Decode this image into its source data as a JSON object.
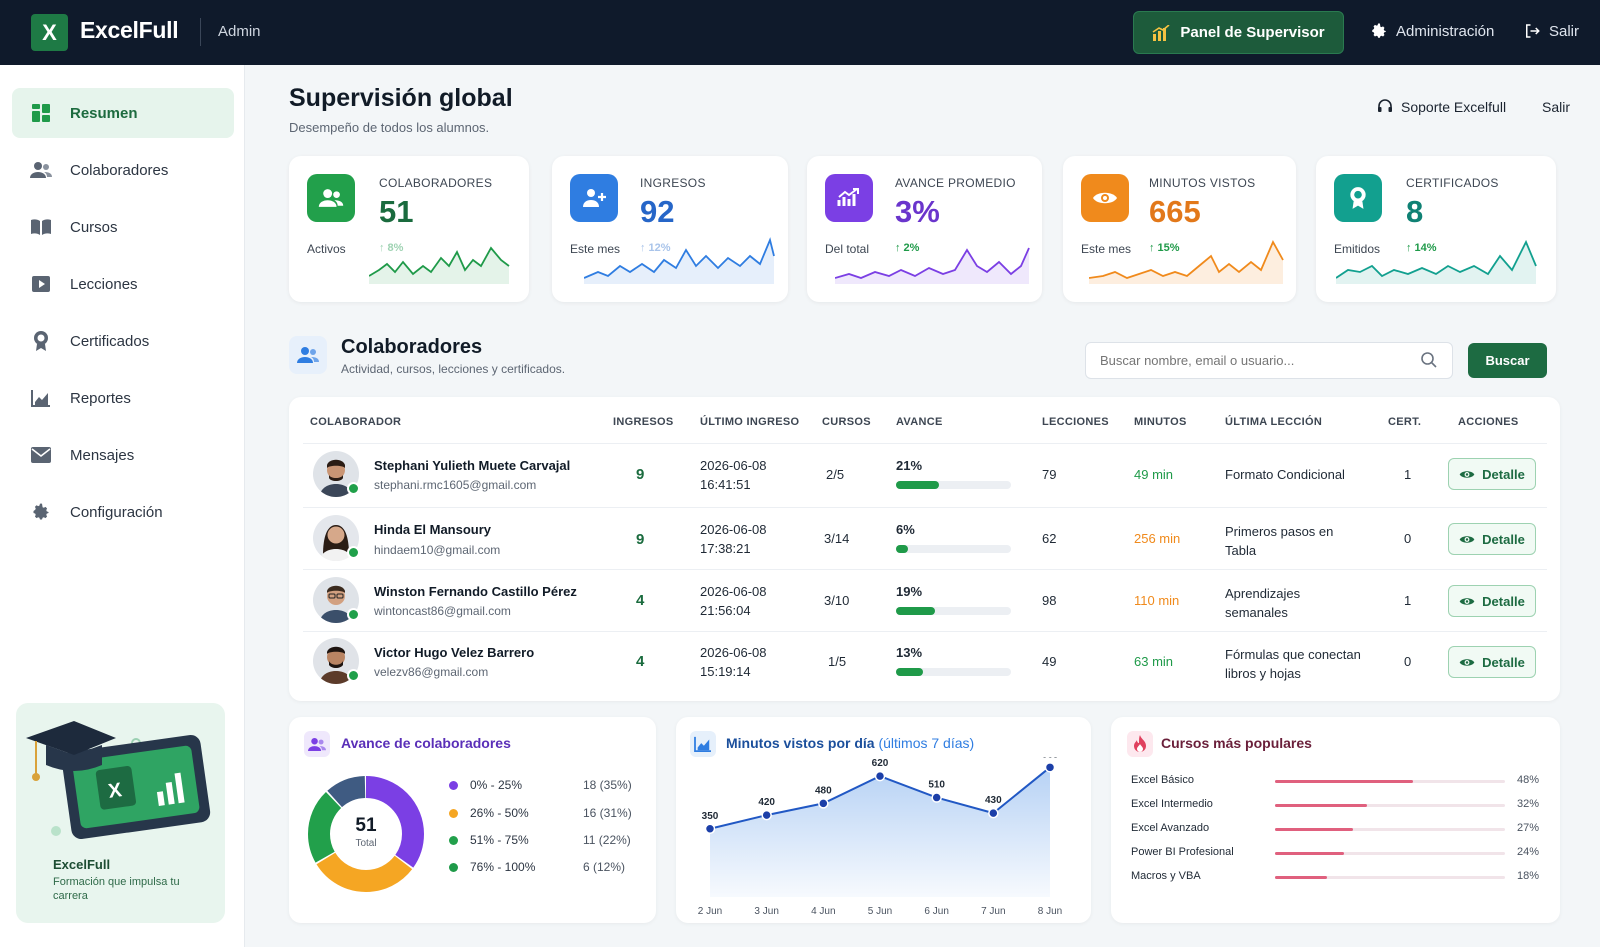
{
  "topbar": {
    "logo_letter": "X",
    "brand": "ExcelFull",
    "section": "Admin",
    "panel_button": "Panel de Supervisor",
    "admin_link": "Administración",
    "logout": "Salir"
  },
  "sidebar": {
    "items": [
      {
        "label": "Resumen",
        "icon": "grid-icon",
        "active": true
      },
      {
        "label": "Colaboradores",
        "icon": "users-icon"
      },
      {
        "label": "Cursos",
        "icon": "book-icon"
      },
      {
        "label": "Lecciones",
        "icon": "play-icon"
      },
      {
        "label": "Certificados",
        "icon": "award-icon"
      },
      {
        "label": "Reportes",
        "icon": "chart-icon"
      },
      {
        "label": "Mensajes",
        "icon": "mail-icon"
      },
      {
        "label": "Configuración",
        "icon": "gear-icon"
      }
    ],
    "promo": {
      "title": "ExcelFull",
      "subtitle": "Formación que impulsa tu carrera",
      "logo_letter": "X"
    }
  },
  "header": {
    "title": "Supervisión global",
    "subtitle": "Desempeño de todos los alumnos.",
    "support": "Soporte Excelfull",
    "logout": "Salir"
  },
  "stats": [
    {
      "label": "COLABORADORES",
      "value": "51",
      "caption": "Activos",
      "delta": "↑ 8%",
      "color": "#1f9a49",
      "icon": "users-icon"
    },
    {
      "label": "INGRESOS",
      "value": "92",
      "caption": "Este mes",
      "delta": "↑ 12%",
      "color": "#2f7de1",
      "icon": "user-plus-icon"
    },
    {
      "label": "AVANCE PROMEDIO",
      "value": "3%",
      "caption": "Del total",
      "delta": "↑ 2%",
      "color": "#7b3fe4",
      "icon": "trend-up-icon"
    },
    {
      "label": "MINUTOS VISTOS",
      "value": "665",
      "caption": "Este mes",
      "delta": "↑ 15%",
      "color": "#f08a1c",
      "icon": "eye-icon"
    },
    {
      "label": "CERTIFICADOS",
      "value": "8",
      "caption": "Emitidos",
      "delta": "↑ 14%",
      "color": "#12a08f",
      "icon": "award-icon"
    }
  ],
  "collaborators": {
    "title": "Colaboradores",
    "subtitle": "Actividad, cursos, lecciones y certificados.",
    "search_placeholder": "Buscar nombre, email o usuario...",
    "search_button": "Buscar",
    "columns": [
      "COLABORADOR",
      "INGRESOS",
      "ÚLTIMO INGRESO",
      "CURSOS",
      "AVANCE",
      "LECCIONES",
      "MINUTOS",
      "ÚLTIMA LECCIÓN",
      "CERT.",
      "ACCIONES"
    ],
    "action_label": "Detalle",
    "rows": [
      {
        "name": "Stephani Yulieth Muete Carvajal",
        "email": "stephani.rmc1605@gmail.com",
        "ingresos": "9",
        "date": "2026-06-08",
        "time": "16:41:51",
        "cursos": "2/5",
        "avance": "21%",
        "avance_value": 21,
        "lecciones": "79",
        "minutos": "49 min",
        "minutos_color": "#1f9a49",
        "ultima": "Formato Condicional",
        "cert": "1"
      },
      {
        "name": "Hinda El Mansoury",
        "email": "hindaem10@gmail.com",
        "ingresos": "9",
        "date": "2026-06-08",
        "time": "17:38:21",
        "cursos": "3/14",
        "avance": "6%",
        "avance_value": 6,
        "lecciones": "62",
        "minutos": "256 min",
        "minutos_color": "#f08a1c",
        "ultima": "Primeros pasos en Tabla",
        "cert": "0"
      },
      {
        "name": "Winston Fernando Castillo Pérez",
        "email": "wintoncast86@gmail.com",
        "ingresos": "4",
        "date": "2026-06-08",
        "time": "21:56:04",
        "cursos": "3/10",
        "avance": "19%",
        "avance_value": 19,
        "lecciones": "98",
        "minutos": "110 min",
        "minutos_color": "#f08a1c",
        "ultima": "Aprendizajes semanales",
        "cert": "1"
      },
      {
        "name": "Victor Hugo Velez Barrero",
        "email": "velezv86@gmail.com",
        "ingresos": "4",
        "date": "2026-06-08",
        "time": "15:19:14",
        "cursos": "1/5",
        "avance": "13%",
        "avance_value": 13,
        "lecciones": "49",
        "minutos": "63 min",
        "minutos_color": "#1f9a49",
        "ultima": "Fórmulas que conectan libros y hojas",
        "cert": "0"
      }
    ]
  },
  "avance_card": {
    "title": "Avance de colaboradores",
    "total_value": "51",
    "total_label": "Total",
    "segments": [
      {
        "label": "0% - 25%",
        "value": "18 (35%)",
        "count": 18,
        "color": "#7b3fe4"
      },
      {
        "label": "26% - 50%",
        "value": "16 (31%)",
        "count": 16,
        "color": "#f5a623"
      },
      {
        "label": "51% - 75%",
        "value": "11 (22%)",
        "count": 11,
        "color": "#22a04b"
      },
      {
        "label": "76% - 100%",
        "value": "6 (12%)",
        "count": 6,
        "color": "#3f5b82"
      }
    ]
  },
  "minutes_card": {
    "title": "Minutos vistos por día",
    "title_suffix": "(últimos 7 días)"
  },
  "popular_card": {
    "title": "Cursos más populares",
    "items": [
      {
        "name": "Excel Básico",
        "pct": "48%",
        "value": 48
      },
      {
        "name": "Excel Intermedio",
        "pct": "32%",
        "value": 32
      },
      {
        "name": "Excel Avanzado",
        "pct": "27%",
        "value": 27
      },
      {
        "name": "Power BI Profesional",
        "pct": "24%",
        "value": 24
      },
      {
        "name": "Macros y VBA",
        "pct": "18%",
        "value": 18
      }
    ]
  },
  "chart_data": {
    "type": "area",
    "title": "Minutos vistos por día",
    "subtitle": "(últimos 7 días)",
    "categories": [
      "2 Jun",
      "3 Jun",
      "4 Jun",
      "5 Jun",
      "6 Jun",
      "7 Jun",
      "8 Jun"
    ],
    "values": [
      350,
      420,
      480,
      620,
      510,
      430,
      665
    ],
    "ylim": [
      0,
      700
    ],
    "grid": false
  }
}
